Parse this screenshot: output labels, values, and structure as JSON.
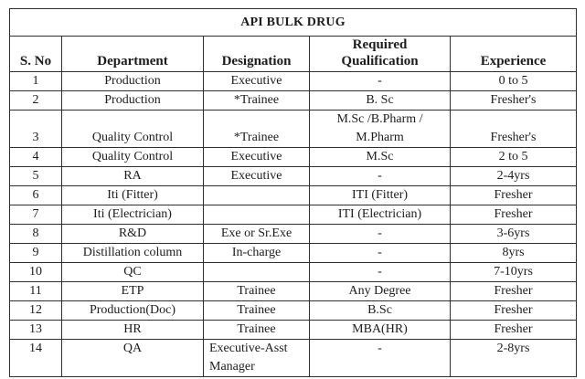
{
  "title": "API BULK DRUG",
  "table": {
    "columns": [
      "S. No",
      "Department",
      "Designation",
      "Required\nQualification",
      "Experience"
    ],
    "column_keys": [
      "sno",
      "department",
      "designation",
      "qualification",
      "experience"
    ],
    "rows": [
      [
        "1",
        "Production",
        "Executive",
        "-",
        "0 to 5"
      ],
      [
        "2",
        "Production",
        "*Trainee",
        "B. Sc",
        "Fresher's"
      ],
      [
        "3",
        "Quality Control",
        "*Trainee",
        "M.Sc /B.Pharm /\nM.Pharm",
        "Fresher's"
      ],
      [
        "4",
        "Quality Control",
        "Executive",
        "M.Sc",
        "2 to 5"
      ],
      [
        "5",
        "RA",
        "Executive",
        "-",
        "2-4yrs"
      ],
      [
        "6",
        "Iti (Fitter)",
        "",
        "ITI (Fitter)",
        "Fresher"
      ],
      [
        "7",
        "Iti (Electrician)",
        "",
        "ITI (Electrician)",
        "Fresher"
      ],
      [
        "8",
        "R&D",
        "Exe or Sr.Exe",
        "-",
        "3-6yrs"
      ],
      [
        "9",
        "Distillation column",
        "In-charge",
        "-",
        "8yrs"
      ],
      [
        "10",
        "QC",
        "",
        "-",
        "7-10yrs"
      ],
      [
        "11",
        "ETP",
        "Trainee",
        "Any Degree",
        "Fresher"
      ],
      [
        "12",
        "Production(Doc)",
        "Trainee",
        "B.Sc",
        "Fresher"
      ],
      [
        "13",
        "HR",
        "Trainee",
        "MBA(HR)",
        "Fresher"
      ],
      [
        "14",
        "QA",
        "Executive-Asst\nManager",
        "-",
        "2-8yrs"
      ]
    ]
  },
  "colors": {
    "background": "#ffffff",
    "border": "#2e2e2e",
    "text": "#1c1c1c"
  }
}
